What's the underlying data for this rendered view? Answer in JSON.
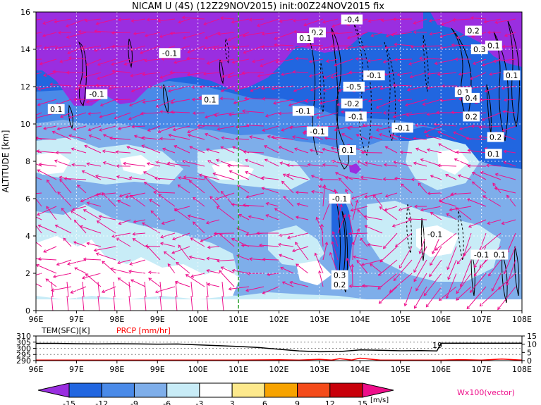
{
  "chart_data": [
    {
      "type": "heatmap",
      "title": "NICAM U (4S) (12Z29NOV2015) init:00Z24NOV2015 fix",
      "xlabel": "",
      "ylabel": "ALTITUDE [km]",
      "x_ticks": [
        "96E",
        "97E",
        "98E",
        "99E",
        "100E",
        "101E",
        "102E",
        "103E",
        "104E",
        "105E",
        "106E",
        "107E",
        "108E"
      ],
      "xlim": [
        96,
        108
      ],
      "y_ticks": [
        "0",
        "2",
        "4",
        "6",
        "8",
        "10",
        "12",
        "14",
        "16"
      ],
      "ylim": [
        0,
        16
      ],
      "grid": true,
      "marked_longitude": 101,
      "contour_labels": [
        {
          "text": "-0.4",
          "x": 103.8,
          "y": 15.6
        },
        {
          "text": "0.2",
          "x": 102.95,
          "y": 14.9
        },
        {
          "text": "0.1",
          "x": 102.65,
          "y": 14.6
        },
        {
          "text": "0.2",
          "x": 106.8,
          "y": 15.0
        },
        {
          "text": "0.3",
          "x": 106.95,
          "y": 14.0
        },
        {
          "text": "0.1",
          "x": 107.3,
          "y": 14.2
        },
        {
          "text": "-0.1",
          "x": 99.3,
          "y": 13.8
        },
        {
          "text": "-0.1",
          "x": 104.35,
          "y": 12.6
        },
        {
          "text": "0.1",
          "x": 107.75,
          "y": 12.6
        },
        {
          "text": "-0.5",
          "x": 103.85,
          "y": 12.0
        },
        {
          "text": "-0.1",
          "x": 97.5,
          "y": 11.6
        },
        {
          "text": "0.1",
          "x": 106.55,
          "y": 11.7
        },
        {
          "text": "0.4",
          "x": 106.75,
          "y": 11.4
        },
        {
          "text": "0.1",
          "x": 100.3,
          "y": 11.3
        },
        {
          "text": "-0.2",
          "x": 103.8,
          "y": 11.1
        },
        {
          "text": "0.1",
          "x": 96.5,
          "y": 10.8
        },
        {
          "text": "-0.1",
          "x": 102.6,
          "y": 10.7
        },
        {
          "text": "-0.1",
          "x": 103.9,
          "y": 10.4
        },
        {
          "text": "0.2",
          "x": 106.75,
          "y": 10.4
        },
        {
          "text": "-0.1",
          "x": 105.05,
          "y": 9.8
        },
        {
          "text": "-0.1",
          "x": 102.95,
          "y": 9.6
        },
        {
          "text": "0.2",
          "x": 107.35,
          "y": 9.3
        },
        {
          "text": "0.1",
          "x": 103.7,
          "y": 8.6
        },
        {
          "text": "0.1",
          "x": 107.3,
          "y": 8.4
        },
        {
          "text": "-0.1",
          "x": 103.5,
          "y": 6.0
        },
        {
          "text": "-0.1",
          "x": 105.85,
          "y": 4.1
        },
        {
          "text": "-0.1",
          "x": 107.0,
          "y": 3.0
        },
        {
          "text": "0.1",
          "x": 107.45,
          "y": 3.0
        },
        {
          "text": "0.3",
          "x": 103.5,
          "y": 1.9
        },
        {
          "text": "0.2",
          "x": 103.5,
          "y": 1.4
        }
      ]
    },
    {
      "type": "line",
      "legend": [
        {
          "name": "TEM(SFC)[K]",
          "color": "#000000"
        },
        {
          "name": "PRCP [mm/hr]",
          "color": "#ff0000"
        }
      ],
      "x_ticks": [
        "96E",
        "97E",
        "98E",
        "99E",
        "100E",
        "101E",
        "102E",
        "103E",
        "104E",
        "105E",
        "106E",
        "107E",
        "108E"
      ],
      "xlim": [
        96,
        108
      ],
      "left_ticks": [
        "310",
        "305",
        "300",
        "295",
        "290"
      ],
      "left_range": [
        290,
        310
      ],
      "right_ticks": [
        "15",
        "10",
        "5",
        "0"
      ],
      "right_range": [
        0,
        15
      ],
      "series": [
        {
          "name": "TEM(SFC)[K]",
          "x": [
            96,
            96.5,
            97,
            97.5,
            98,
            98.5,
            99,
            99.5,
            100,
            100.5,
            101,
            101.5,
            102,
            102.5,
            103,
            103.5,
            104,
            104.5,
            105,
            105.5,
            105.9,
            106,
            106.5,
            107,
            107.5,
            108
          ],
          "values": [
            304,
            304,
            303.7,
            303.6,
            303.7,
            303.6,
            303.4,
            303.5,
            302.8,
            302.2,
            301.5,
            300.6,
            299.2,
            297.8,
            297.2,
            297.4,
            298.7,
            298.4,
            298.0,
            298.2,
            297.8,
            304.2,
            304.2,
            304.2,
            304.2,
            304.2
          ]
        },
        {
          "name": "PRCP [mm/hr]",
          "x": [
            96,
            97,
            98,
            99,
            100,
            101,
            102,
            102.5,
            103,
            103.3,
            103.5,
            103.8,
            104,
            104.5,
            105,
            106,
            106.5,
            107,
            107.5,
            108
          ],
          "values": [
            0.3,
            0.3,
            0.3,
            0.3,
            0.3,
            0.3,
            0.5,
            0.3,
            0.8,
            0.3,
            1.2,
            0.4,
            1.5,
            0.3,
            0.3,
            0.3,
            0.6,
            0.3,
            1.0,
            0.3
          ]
        }
      ],
      "annotation": "19"
    },
    {
      "type": "colorbar",
      "levels": [
        "-15",
        "-12",
        "-9",
        "-6",
        "-3",
        "3",
        "6",
        "9",
        "12",
        "15"
      ],
      "unit": "[m/s]",
      "colors": [
        "#9a2ee0",
        "#2166e0",
        "#4a8ae8",
        "#7eaeea",
        "#c8ecf7",
        "#ffffff",
        "#fde98c",
        "#f7a300",
        "#f44b1a",
        "#c8000a",
        "#ee0e8a"
      ],
      "vector_label": "Wx100(vector)"
    }
  ]
}
